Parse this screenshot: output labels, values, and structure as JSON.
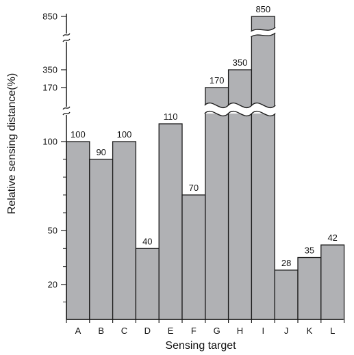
{
  "chart_data": {
    "type": "bar",
    "xlabel": "Sensing target",
    "ylabel": "Relative sensing distance(%)",
    "categories": [
      "A",
      "B",
      "C",
      "D",
      "E",
      "F",
      "G",
      "H",
      "I",
      "J",
      "K",
      "L"
    ],
    "values": [
      100,
      90,
      100,
      40,
      110,
      70,
      170,
      350,
      850,
      28,
      35,
      42
    ],
    "yticks": [
      20,
      50,
      100,
      170,
      350,
      850
    ],
    "axis_break": true,
    "grid": false,
    "bar_color": "#b0b1b4",
    "edge_color": "#1a1a1a"
  }
}
